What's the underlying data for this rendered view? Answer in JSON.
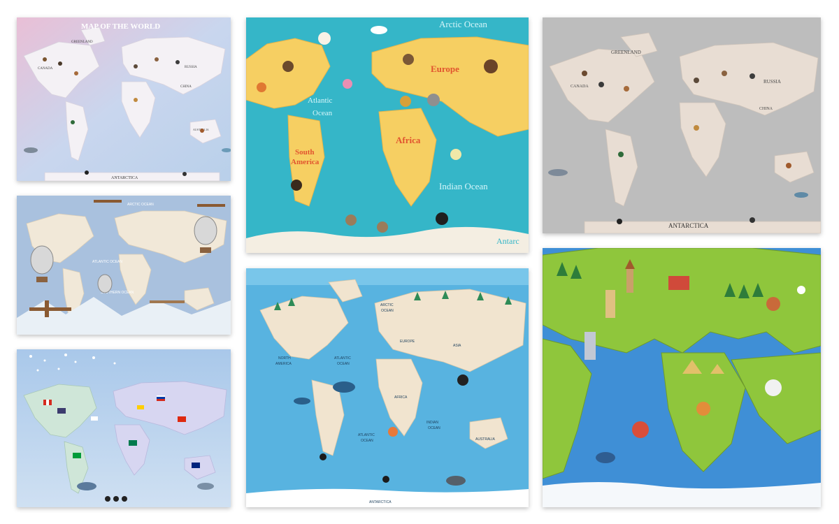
{
  "colors": {
    "pastel_pink": "#e9bfd6",
    "pastel_blue": "#b9d0ea",
    "turquoise_sea": "#35b6c8",
    "sand_land": "#f6cf62",
    "gray_sea": "#bdbdbd",
    "gray_land": "#e8ddd3",
    "blue_sea": "#58b3e0",
    "cartoon_ocean": "#3f8fd6",
    "cartoon_land": "#8fc63c"
  },
  "tiles": {
    "pink_map": {
      "title": "MAP OF THE WORLD",
      "greenland": "GREENLAND",
      "canada": "CANADA",
      "russia": "RUSSIA",
      "china": "CHINA",
      "australia": "AUSTRALIA",
      "antarctica": "ANTARCTICA"
    },
    "turquoise_map": {
      "arctic": "Arctic Ocean",
      "atlantic_1": "Atlantic",
      "atlantic_2": "Ocean",
      "europe": "Europe",
      "africa": "Africa",
      "south_1": "South",
      "south_2": "America",
      "indian": "Indian Ocean",
      "antarctica_partial": "Antarc"
    },
    "gray_map": {
      "greenland": "GREENLAND",
      "canada": "CANADA",
      "russia": "RUSSIA",
      "china": "CHINA",
      "antarctica": "ANTARCTICA"
    },
    "balloon_map": {
      "arctic": "ARCTIC OCEAN",
      "atlantic": "ATLANTIC OCEAN",
      "southern": "SOUTHERN OCEAN"
    },
    "blue_map": {
      "arctic_1": "ARCTIC",
      "arctic_2": "OCEAN",
      "atlantic_1": "ATLANTIC",
      "atlantic_2": "OCEAN",
      "north_1": "NORTH",
      "north_2": "AMERICA",
      "europe": "EUROPE",
      "asia": "ASIA",
      "africa": "AFRICA",
      "indian_1": "INDIAN",
      "indian_2": "OCEAN",
      "atlantic_s1": "ATLANTIC",
      "atlantic_s2": "OCEAN",
      "australia": "AUSTRALIA",
      "antarctica": "ANTARCTICA"
    }
  }
}
